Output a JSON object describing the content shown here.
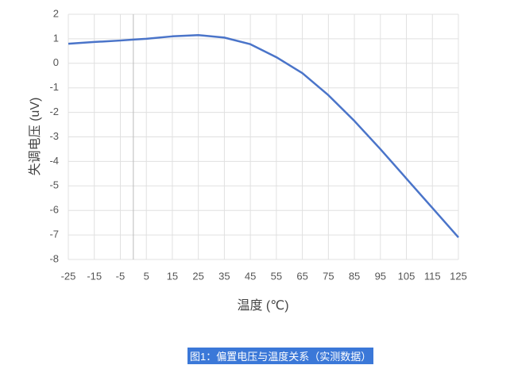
{
  "chart_data": {
    "type": "line",
    "x_label": "温度 (℃)",
    "y_label": "失调电压 (uV)",
    "x": [
      -25,
      -15,
      -5,
      0,
      5,
      15,
      25,
      35,
      45,
      55,
      65,
      75,
      85,
      95,
      105,
      115,
      125
    ],
    "series": [
      {
        "color": "#4a74c9",
        "values": [
          0.8,
          0.87,
          0.93,
          0.97,
          1.0,
          1.1,
          1.15,
          1.05,
          0.78,
          0.25,
          -0.4,
          -1.3,
          -2.35,
          -3.5,
          -4.7,
          -5.9,
          -7.1
        ]
      }
    ],
    "xlim": [
      -25,
      125
    ],
    "xticks": [
      -25,
      -15,
      -5,
      5,
      15,
      25,
      35,
      45,
      55,
      65,
      75,
      85,
      95,
      105,
      115,
      125
    ],
    "ylim": [
      -8,
      2
    ],
    "yticks": [
      -8,
      -7,
      -6,
      -5,
      -4,
      -3,
      -2,
      -1,
      0,
      1,
      2
    ],
    "grid": true
  },
  "caption": "图1：偏置电压与温度关系（实测数据）"
}
